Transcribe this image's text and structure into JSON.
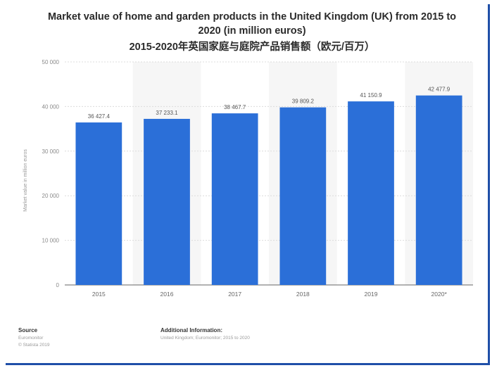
{
  "title_line1": "Market value of home and garden products in the United Kingdom (UK) from 2015 to",
  "title_line2": "2020 (in million euros)",
  "subtitle": "2015-2020年英国家庭与庭院产品销售额（欧元/百万）",
  "chart_data": {
    "type": "bar",
    "categories": [
      "2015",
      "2016",
      "2017",
      "2018",
      "2019",
      "2020*"
    ],
    "values": [
      36427.4,
      37233.1,
      38467.7,
      39809.2,
      41150.9,
      42477.9
    ],
    "value_labels": [
      "36 427.4",
      "37 233.1",
      "38 467.7",
      "39 809.2",
      "41 150.9",
      "42 477.9"
    ],
    "ylabel": "Market value in million euros",
    "xlabel": "",
    "ylim": [
      0,
      50000
    ],
    "yticks": [
      0,
      10000,
      20000,
      30000,
      40000,
      50000
    ],
    "ytick_labels": [
      "0",
      "10 000",
      "20 000",
      "30 000",
      "40 000",
      "50 000"
    ],
    "grid": true,
    "bar_color": "#2b6fd8",
    "grid_color": "#dcdcdc"
  },
  "footer": {
    "source_heading": "Source",
    "source_lines": [
      "Euromonitor",
      "© Statista 2019"
    ],
    "info_heading": "Additional Information:",
    "info_line": "United Kingdom; Euromonitor; 2015 to 2020"
  }
}
